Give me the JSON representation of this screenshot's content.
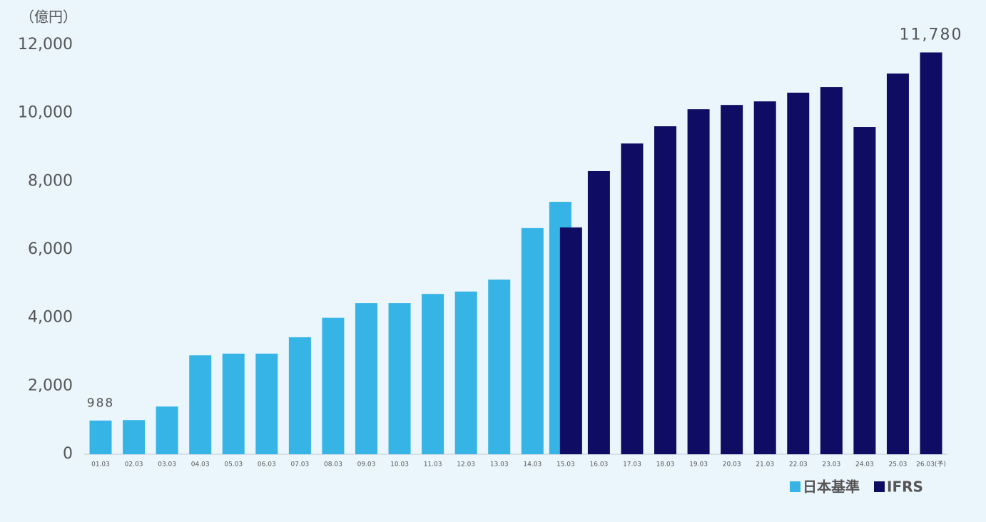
{
  "chart_data": {
    "type": "bar",
    "y_label": "（億円）",
    "categories": [
      "01.03",
      "02.03",
      "03.03",
      "04.03",
      "05.03",
      "06.03",
      "07.03",
      "08.03",
      "09.03",
      "10.03",
      "11.03",
      "12.03",
      "13.03",
      "14.03",
      "15.03",
      "16.03",
      "17.03",
      "18.03",
      "19.03",
      "20.03",
      "21.03",
      "22.03",
      "23.03",
      "24.03",
      "25.03",
      "26.03(予)"
    ],
    "series": [
      {
        "name": "日本基準",
        "color": "#36b4e6",
        "values": [
          988,
          1000,
          1400,
          2900,
          2950,
          2950,
          3430,
          4000,
          4430,
          4430,
          4700,
          4770,
          5120,
          6630,
          7400,
          null,
          null,
          null,
          null,
          null,
          null,
          null,
          null,
          null,
          null,
          null
        ],
        "value_labels": [
          "988",
          null,
          null,
          null,
          null,
          null,
          null,
          null,
          null,
          null,
          null,
          null,
          null,
          null,
          null,
          null,
          null,
          null,
          null,
          null,
          null,
          null,
          null,
          null,
          null,
          null
        ]
      },
      {
        "name": "IFRS",
        "color": "#0f0c63",
        "values": [
          null,
          null,
          null,
          null,
          null,
          null,
          null,
          null,
          null,
          null,
          null,
          null,
          null,
          null,
          6650,
          8300,
          9110,
          9615,
          10115,
          10240,
          10345,
          10600,
          10765,
          9595,
          11160,
          11780
        ],
        "value_labels": [
          null,
          null,
          null,
          null,
          null,
          null,
          null,
          null,
          null,
          null,
          null,
          null,
          null,
          null,
          null,
          null,
          null,
          null,
          null,
          null,
          null,
          null,
          null,
          null,
          null,
          "11,780"
        ]
      }
    ],
    "ylim": [
      0,
      12000
    ],
    "yticks": [
      0,
      {
        "value": 2000,
        "label": "2,000"
      },
      {
        "value": 4000,
        "label": "4,000"
      },
      {
        "value": 6000,
        "label": "6,000"
      },
      {
        "value": 8000,
        "label": "8,000"
      },
      {
        "value": 10000,
        "label": "10,000"
      },
      {
        "value": 12000,
        "label": "12,000"
      }
    ],
    "legend": "bottom-right",
    "grid": false
  }
}
